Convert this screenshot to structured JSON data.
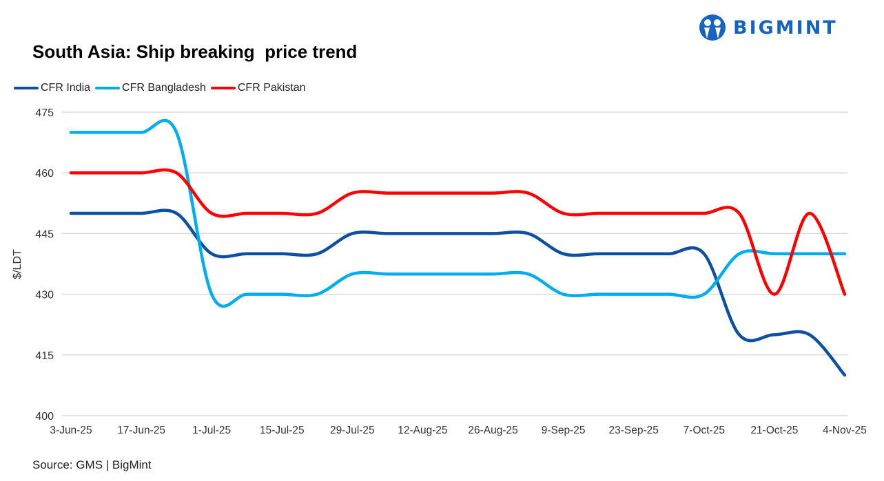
{
  "brand": {
    "name": "BIGMINT",
    "color": "#1565c0"
  },
  "title": "South Asia: Ship breaking  price trend",
  "source": "Source: GMS | BigMint",
  "chart_data": {
    "type": "line",
    "title": "South Asia: Ship breaking  price trend",
    "ylabel": "$/LDT",
    "xlabel": "",
    "ylim": [
      400,
      475
    ],
    "yticks": [
      400,
      415,
      430,
      445,
      460,
      475
    ],
    "grid": true,
    "smooth": true,
    "legend_position": "top-left",
    "x": [
      "3-Jun-25",
      "10-Jun-25",
      "17-Jun-25",
      "24-Jun-25",
      "1-Jul-25",
      "8-Jul-25",
      "15-Jul-25",
      "22-Jul-25",
      "29-Jul-25",
      "5-Aug-25",
      "12-Aug-25",
      "19-Aug-25",
      "26-Aug-25",
      "2-Sep-25",
      "9-Sep-25",
      "16-Sep-25",
      "23-Sep-25",
      "30-Sep-25",
      "7-Oct-25",
      "14-Oct-25",
      "21-Oct-25",
      "28-Oct-25",
      "4-Nov-25"
    ],
    "xtick_labels": [
      "3-Jun-25",
      "17-Jun-25",
      "1-Jul-25",
      "15-Jul-25",
      "29-Jul-25",
      "12-Aug-25",
      "26-Aug-25",
      "9-Sep-25",
      "23-Sep-25",
      "7-Oct-25",
      "21-Oct-25",
      "4-Nov-25"
    ],
    "series": [
      {
        "name": "CFR India",
        "color": "#0d4fa3",
        "values": [
          450,
          450,
          450,
          450,
          440,
          440,
          440,
          440,
          445,
          445,
          445,
          445,
          445,
          445,
          440,
          440,
          440,
          440,
          440,
          420,
          420,
          420,
          410
        ]
      },
      {
        "name": "CFR Bangladesh",
        "color": "#00adef",
        "values": [
          470,
          470,
          470,
          470,
          430,
          430,
          430,
          430,
          435,
          435,
          435,
          435,
          435,
          435,
          430,
          430,
          430,
          430,
          430,
          440,
          440,
          440,
          440
        ]
      },
      {
        "name": "CFR Pakistan",
        "color": "#ff0000",
        "values": [
          460,
          460,
          460,
          460,
          450,
          450,
          450,
          450,
          455,
          455,
          455,
          455,
          455,
          455,
          450,
          450,
          450,
          450,
          450,
          450,
          430,
          450,
          430
        ]
      }
    ]
  }
}
